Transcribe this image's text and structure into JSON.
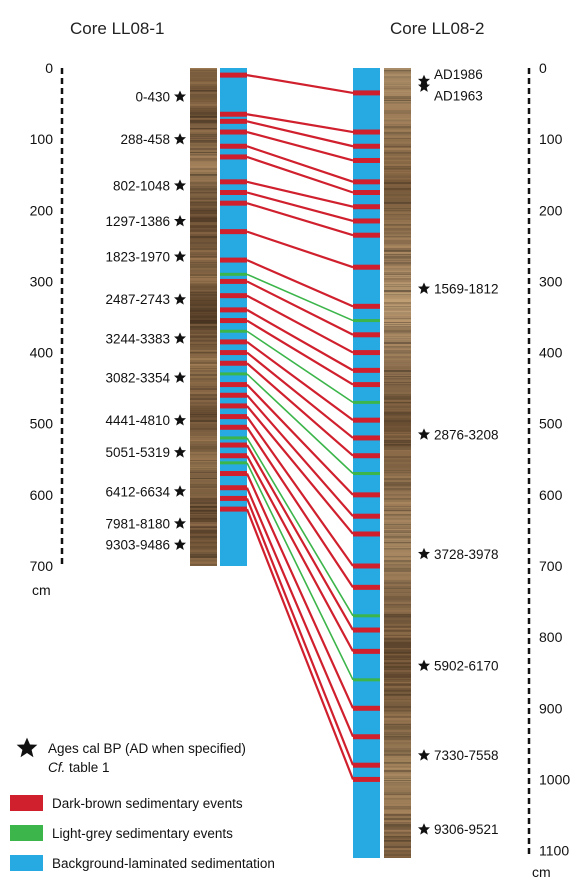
{
  "colors": {
    "dark_brown_event": "#d0202e",
    "light_grey_event": "#3cb54a",
    "background_laminated": "#27aae1",
    "star": "#111111"
  },
  "core1": {
    "title": "Core LL08-1",
    "scale_ticks": [
      "0",
      "100",
      "200",
      "300",
      "400",
      "500",
      "600",
      "700"
    ],
    "scale_unit": "cm",
    "depth_max_cm": 700,
    "ages": [
      {
        "label": "0-430",
        "depth_cm": 40
      },
      {
        "label": "288-458",
        "depth_cm": 100
      },
      {
        "label": "802-1048",
        "depth_cm": 165
      },
      {
        "label": "1297-1386",
        "depth_cm": 215
      },
      {
        "label": "1823-1970",
        "depth_cm": 265
      },
      {
        "label": "2487-2743",
        "depth_cm": 325
      },
      {
        "label": "3244-3383",
        "depth_cm": 380
      },
      {
        "label": "3082-3354",
        "depth_cm": 435
      },
      {
        "label": "4441-4810",
        "depth_cm": 495
      },
      {
        "label": "5051-5319",
        "depth_cm": 540
      },
      {
        "label": "6412-6634",
        "depth_cm": 595
      },
      {
        "label": "7981-8180",
        "depth_cm": 640
      },
      {
        "label": "9303-9486",
        "depth_cm": 670
      }
    ]
  },
  "core2": {
    "title": "Core LL08-2",
    "scale_ticks": [
      "0",
      "100",
      "200",
      "300",
      "400",
      "500",
      "600",
      "700",
      "800",
      "900",
      "1000",
      "1100"
    ],
    "scale_unit": "cm",
    "depth_max_cm": 1100,
    "ages": [
      {
        "label": "AD1986",
        "depth_cm": 18
      },
      {
        "label": "AD1963",
        "depth_cm": 26
      },
      {
        "label": "1569-1812",
        "depth_cm": 310
      },
      {
        "label": "2876-3208",
        "depth_cm": 515
      },
      {
        "label": "3728-3978",
        "depth_cm": 683
      },
      {
        "label": "5902-6170",
        "depth_cm": 840
      },
      {
        "label": "7330-7558",
        "depth_cm": 966
      },
      {
        "label": "9306-9521",
        "depth_cm": 1070
      }
    ]
  },
  "correlations": [
    {
      "d1": 10,
      "d2": 35,
      "type": "dark"
    },
    {
      "d1": 65,
      "d2": 90,
      "type": "dark"
    },
    {
      "d1": 75,
      "d2": 110,
      "type": "dark"
    },
    {
      "d1": 90,
      "d2": 130,
      "type": "dark"
    },
    {
      "d1": 110,
      "d2": 160,
      "type": "dark"
    },
    {
      "d1": 125,
      "d2": 175,
      "type": "dark"
    },
    {
      "d1": 160,
      "d2": 195,
      "type": "dark"
    },
    {
      "d1": 175,
      "d2": 215,
      "type": "dark"
    },
    {
      "d1": 190,
      "d2": 235,
      "type": "dark"
    },
    {
      "d1": 230,
      "d2": 280,
      "type": "dark"
    },
    {
      "d1": 270,
      "d2": 335,
      "type": "dark"
    },
    {
      "d1": 290,
      "d2": 355,
      "type": "light"
    },
    {
      "d1": 300,
      "d2": 375,
      "type": "dark"
    },
    {
      "d1": 320,
      "d2": 400,
      "type": "dark"
    },
    {
      "d1": 340,
      "d2": 425,
      "type": "dark"
    },
    {
      "d1": 355,
      "d2": 445,
      "type": "dark"
    },
    {
      "d1": 370,
      "d2": 470,
      "type": "light"
    },
    {
      "d1": 385,
      "d2": 495,
      "type": "dark"
    },
    {
      "d1": 400,
      "d2": 520,
      "type": "dark"
    },
    {
      "d1": 415,
      "d2": 545,
      "type": "dark"
    },
    {
      "d1": 430,
      "d2": 570,
      "type": "light"
    },
    {
      "d1": 445,
      "d2": 600,
      "type": "dark"
    },
    {
      "d1": 460,
      "d2": 630,
      "type": "dark"
    },
    {
      "d1": 475,
      "d2": 655,
      "type": "dark"
    },
    {
      "d1": 490,
      "d2": 700,
      "type": "dark"
    },
    {
      "d1": 505,
      "d2": 730,
      "type": "dark"
    },
    {
      "d1": 520,
      "d2": 770,
      "type": "light"
    },
    {
      "d1": 530,
      "d2": 790,
      "type": "dark"
    },
    {
      "d1": 545,
      "d2": 820,
      "type": "dark"
    },
    {
      "d1": 555,
      "d2": 860,
      "type": "light"
    },
    {
      "d1": 570,
      "d2": 900,
      "type": "dark"
    },
    {
      "d1": 590,
      "d2": 940,
      "type": "dark"
    },
    {
      "d1": 605,
      "d2": 980,
      "type": "dark"
    },
    {
      "d1": 620,
      "d2": 1000,
      "type": "dark"
    }
  ],
  "legend": {
    "star_text": "Ages cal BP (AD when specified)",
    "cf_prefix": "Cf.",
    "cf_suffix": " table 1",
    "items": [
      {
        "label": "Dark-brown sedimentary events",
        "type": "dark"
      },
      {
        "label": "Light-grey sedimentary events",
        "type": "light"
      },
      {
        "label": "Background-laminated sedimentation",
        "type": "background"
      }
    ]
  }
}
